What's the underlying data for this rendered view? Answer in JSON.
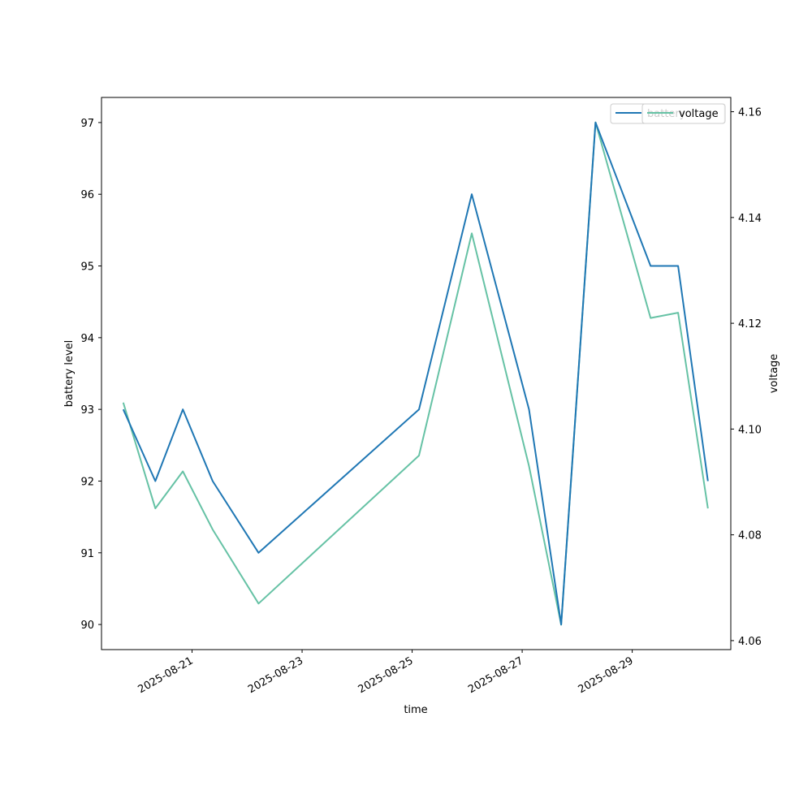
{
  "chart_data": {
    "type": "line",
    "title": "",
    "xlabel": "time",
    "ylabel": "battery level",
    "y2label": "voltage",
    "x": [
      "2025-08-19 18:00",
      "2025-08-20 08:00",
      "2025-08-20 20:00",
      "2025-08-21 09:00",
      "2025-08-22 05:00",
      "2025-08-25 03:00",
      "2025-08-26 02:00",
      "2025-08-27 03:00",
      "2025-08-27 17:00",
      "2025-08-28 08:00",
      "2025-08-29 08:00",
      "2025-08-29 20:00",
      "2025-08-30 09:00"
    ],
    "series": [
      {
        "name": "battery",
        "axis": "left",
        "color": "#1f77b4",
        "values": [
          93,
          92,
          93,
          92,
          91,
          93,
          96,
          93,
          90,
          97,
          95,
          95,
          92
        ]
      },
      {
        "name": "voltage",
        "axis": "right",
        "color": "#66c2a5",
        "values": [
          4.105,
          4.085,
          4.092,
          4.081,
          4.067,
          4.095,
          4.137,
          4.093,
          4.063,
          4.158,
          4.121,
          4.122,
          4.085
        ]
      }
    ],
    "xticks": [
      "2025-08-21",
      "2025-08-23",
      "2025-08-25",
      "2025-08-27",
      "2025-08-29"
    ],
    "ylim": [
      89.65,
      97.35
    ],
    "yticks": [
      90,
      91,
      92,
      93,
      94,
      95,
      96,
      97
    ],
    "y2lim": [
      4.0583,
      4.1627
    ],
    "y2ticks": [
      "4.06",
      "4.08",
      "4.10",
      "4.12",
      "4.14",
      "4.16"
    ],
    "xlim": [
      "2025-08-19 08:30",
      "2025-08-30 19:00"
    ],
    "grid": false,
    "legend": [
      {
        "label": "battery",
        "color": "#1f77b4",
        "placement": "upper-right",
        "partially_hidden": true
      },
      {
        "label": "voltage",
        "color": "#66c2a5",
        "placement": "upper-right"
      }
    ]
  }
}
